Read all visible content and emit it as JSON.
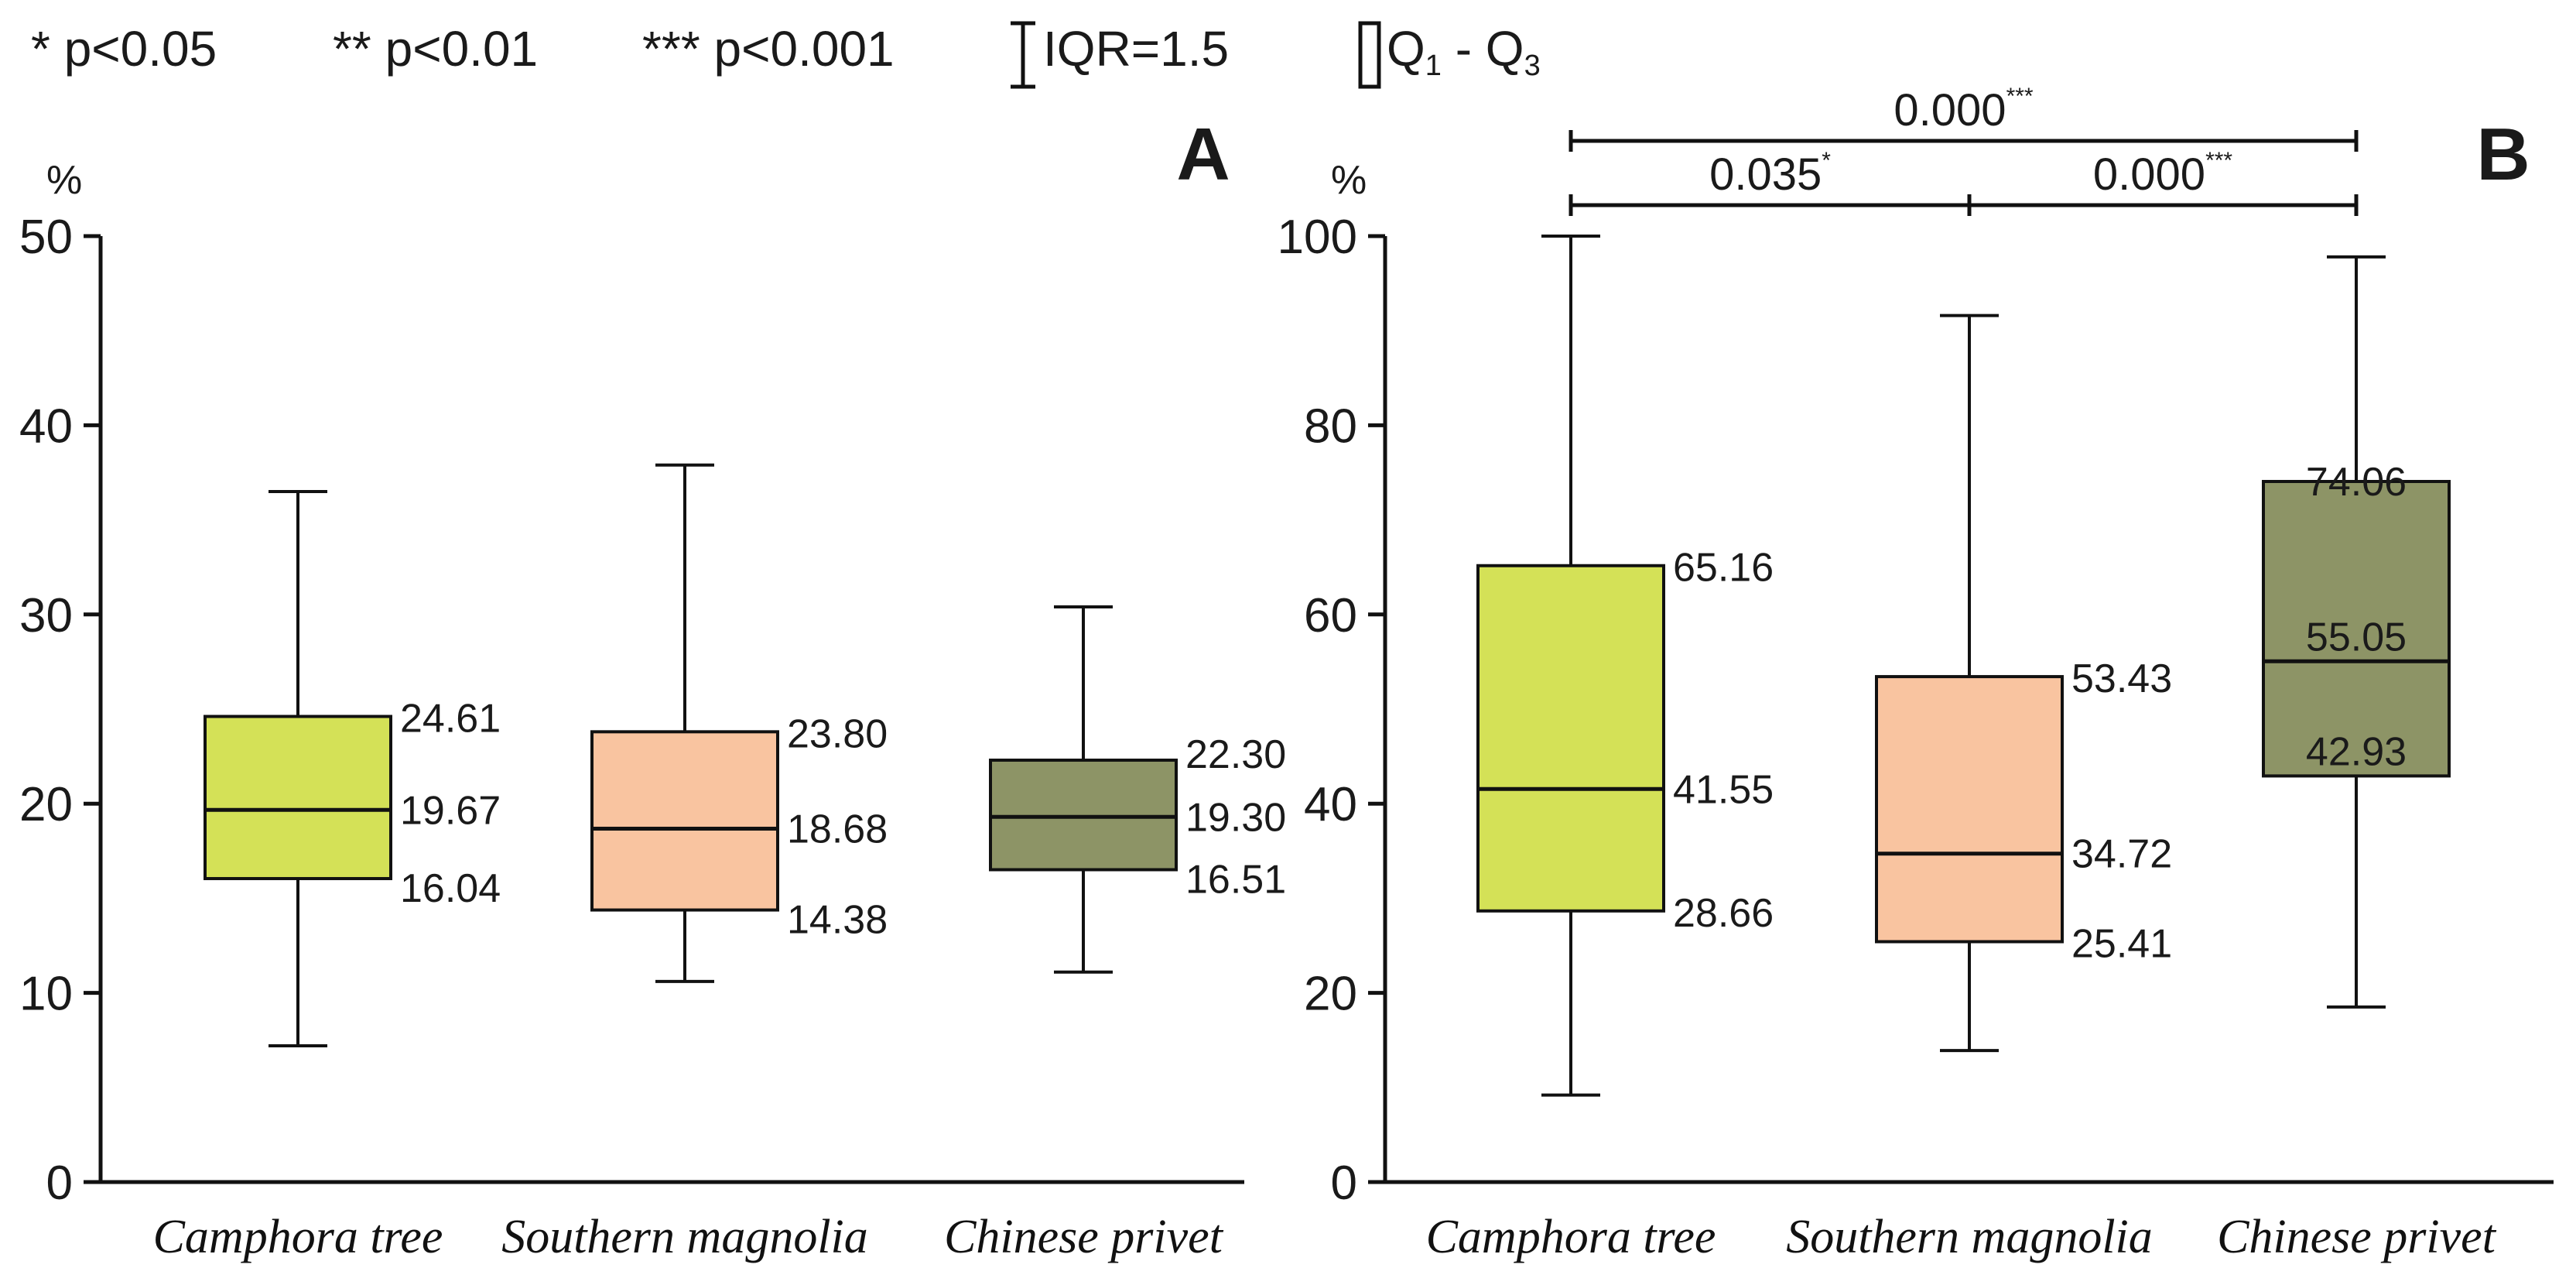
{
  "legend": {
    "sig1": "* p<0.05",
    "sig2": "** p<0.01",
    "sig3": "*** p<0.001",
    "whisker": "IQR=1.5",
    "box_q": "Q",
    "box_sub1": "1",
    "box_dash": " - Q",
    "box_sub3": "3"
  },
  "colors": {
    "camphora": "#d4e157",
    "magnolia": "#f9c4a0",
    "privet": "#8d9466",
    "panel_letter": "#b8553a",
    "stroke": "#111111"
  },
  "chart_data": [
    {
      "type": "box",
      "panel": "A",
      "ylabel": "%",
      "ylim": [
        0,
        50
      ],
      "yticks": [
        "0",
        "10",
        "20",
        "30",
        "40",
        "50"
      ],
      "categories": [
        "Camphora tree",
        "Southern magnolia",
        "Chinese privet"
      ],
      "series": [
        {
          "name": "Camphora tree",
          "min": 7.2,
          "q1": 16.04,
          "median": 19.67,
          "q3": 24.61,
          "max": 36.5,
          "labels": {
            "q1": "16.04",
            "median": "19.67",
            "q3": "24.61"
          }
        },
        {
          "name": "Southern magnolia",
          "min": 10.6,
          "q1": 14.38,
          "median": 18.68,
          "q3": 23.8,
          "max": 37.9,
          "labels": {
            "q1": "14.38",
            "median": "18.68",
            "q3": "23.80"
          }
        },
        {
          "name": "Chinese privet",
          "min": 11.1,
          "q1": 16.51,
          "median": 19.3,
          "q3": 22.3,
          "max": 30.4,
          "labels": {
            "q1": "16.51",
            "median": "19.30",
            "q3": "22.30"
          }
        }
      ],
      "significance": []
    },
    {
      "type": "box",
      "panel": "B",
      "ylabel": "%",
      "ylim": [
        0,
        100
      ],
      "yticks": [
        "0",
        "20",
        "40",
        "60",
        "80",
        "100"
      ],
      "categories": [
        "Camphora tree",
        "Southern magnolia",
        "Chinese privet"
      ],
      "series": [
        {
          "name": "Camphora tree",
          "min": 9.2,
          "q1": 28.66,
          "median": 41.55,
          "q3": 65.16,
          "max": 100,
          "labels": {
            "q1": "28.66",
            "median": "41.55",
            "q3": "65.16"
          }
        },
        {
          "name": "Southern magnolia",
          "min": 13.9,
          "q1": 25.41,
          "median": 34.72,
          "q3": 53.43,
          "max": 91.6,
          "labels": {
            "q1": "25.41",
            "median": "34.72",
            "q3": "53.43"
          }
        },
        {
          "name": "Chinese privet",
          "min": 18.5,
          "q1": 42.93,
          "median": 55.05,
          "q3": 74.06,
          "max": 97.8,
          "labels": {
            "q1": "42.93",
            "median": "55.05",
            "q3": "74.06"
          }
        }
      ],
      "significance": [
        {
          "from": 0,
          "to": 2,
          "p": "0.000",
          "stars": "***",
          "level": 2
        },
        {
          "from": 0,
          "to": 1,
          "p": "0.035",
          "stars": "*",
          "level": 1
        },
        {
          "from": 1,
          "to": 2,
          "p": "0.000",
          "stars": "***",
          "level": 1
        }
      ]
    }
  ]
}
